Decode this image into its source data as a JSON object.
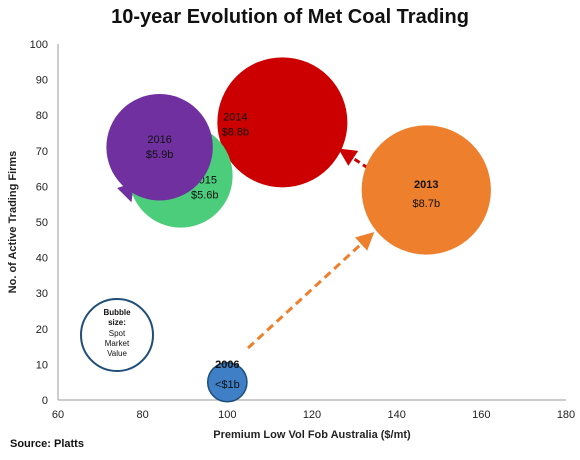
{
  "chart_data": {
    "type": "bubble",
    "title": "10-year Evolution of Met Coal Trading",
    "xlabel": "Premium Low Vol Fob Australia ($/mt)",
    "ylabel": "No. of Active Trading Firms",
    "xlim": [
      60,
      180
    ],
    "ylim": [
      0,
      100
    ],
    "xticks": [
      60,
      80,
      100,
      120,
      140,
      160,
      180
    ],
    "yticks": [
      0,
      10,
      20,
      30,
      40,
      50,
      60,
      70,
      80,
      90,
      100
    ],
    "grid": false,
    "bubbles": [
      {
        "year": "2006",
        "value_label": "<$1b",
        "x": 100,
        "y": 5,
        "size": 0.8,
        "color": "#3f7fc6"
      },
      {
        "year": "2013",
        "value_label": "$8.7b",
        "x": 147,
        "y": 59,
        "size": 8.7,
        "color": "#ee7f2d"
      },
      {
        "year": "2014",
        "value_label": "$8.8b",
        "x": 113,
        "y": 78,
        "size": 8.8,
        "color": "#cc0000"
      },
      {
        "year": "2015",
        "value_label": "$5.6b",
        "x": 89,
        "y": 63,
        "size": 5.6,
        "color": "#4ccd7c"
      },
      {
        "year": "2016",
        "value_label": "$5.9b",
        "x": 84,
        "y": 71,
        "size": 5.9,
        "color": "#7030a0"
      }
    ],
    "key_note": [
      "Bubble",
      "size:",
      "Spot",
      "Market",
      "Value"
    ]
  },
  "source": "Source: Platts"
}
